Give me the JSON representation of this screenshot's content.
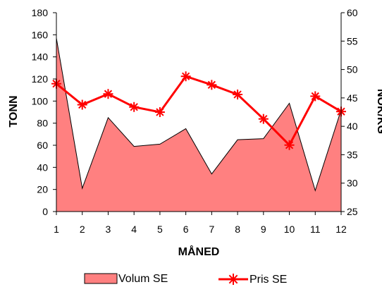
{
  "chart_data": {
    "type": "area",
    "title": "",
    "x": [
      1,
      2,
      3,
      4,
      5,
      6,
      7,
      8,
      9,
      10,
      11,
      12
    ],
    "xlabel": "MÅNED",
    "ylabel_left": "TONN",
    "ylabel_right": "NOK/KG",
    "ylim_left": [
      0,
      180
    ],
    "ylim_right": [
      25,
      60
    ],
    "yticks_left": [
      0,
      20,
      40,
      60,
      80,
      100,
      120,
      140,
      160,
      180
    ],
    "yticks_right": [
      25,
      30,
      35,
      40,
      45,
      50,
      55,
      60
    ],
    "grid": false,
    "legend_position": "bottom",
    "series": [
      {
        "name": "Volum SE",
        "type": "area",
        "axis": "left",
        "color": "#ff8080",
        "values": [
          157,
          21,
          85,
          59,
          61,
          75,
          34,
          65,
          66,
          98,
          19,
          92
        ]
      },
      {
        "name": "Pris SE",
        "type": "line",
        "axis": "right",
        "color": "#ff0000",
        "marker": "asterisk",
        "values": [
          47.5,
          43.8,
          45.7,
          43.4,
          42.5,
          48.8,
          47.3,
          45.6,
          41.3,
          36.7,
          45.3,
          42.6
        ]
      }
    ]
  }
}
